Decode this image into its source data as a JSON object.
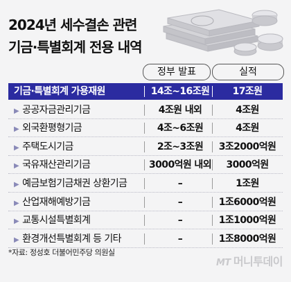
{
  "title": {
    "line1": "2024년 세수결손 관련",
    "line2": "기금·특별회계 전용 내역"
  },
  "columns": {
    "gov": "정부 발표",
    "actual": "실적"
  },
  "chart_data": {
    "type": "table",
    "headers": [
      "",
      "정부 발표",
      "실적"
    ],
    "rows": [
      {
        "label": "기금·특별회계 가용재원",
        "gov": "14조~16조원",
        "actual": "17조원",
        "total": true
      },
      {
        "label": "공공자금관리기금",
        "gov": "4조원 내외",
        "actual": "4조원"
      },
      {
        "label": "외국환평형기금",
        "gov": "4조~6조원",
        "actual": "4조원"
      },
      {
        "label": "주택도시기금",
        "gov": "2조~3조원",
        "actual": "3조2000억원"
      },
      {
        "label": "국유재산관리기금",
        "gov": "3000억원 내외",
        "actual": "3000억원"
      },
      {
        "label": "예금보험기금채권 상환기금",
        "gov": "–",
        "actual": "1조원"
      },
      {
        "label": "산업재해예방기금",
        "gov": "–",
        "actual": "1조6000억원"
      },
      {
        "label": "교통시설특별회계",
        "gov": "–",
        "actual": "1조1000억원"
      },
      {
        "label": "환경개선특별회계 등 기타",
        "gov": "–",
        "actual": "1조8000억원"
      }
    ]
  },
  "source": "*자료: 정성호 더불어민주당 의원실",
  "brand": {
    "mt": "MT",
    "name": "머니투데이"
  },
  "icons": {
    "illustration": "money-stack-icon",
    "row_marker": "triangle-right-icon"
  },
  "colors": {
    "total_row": "#2b2ba0",
    "background": "#f4f4f5"
  }
}
